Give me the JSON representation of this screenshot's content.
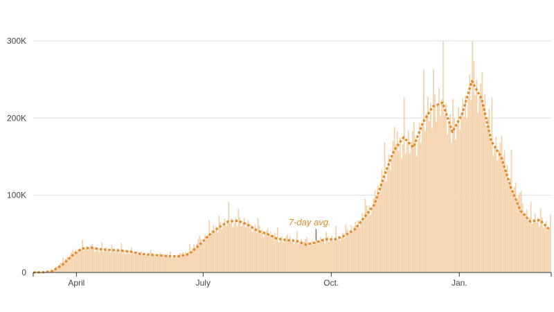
{
  "chart_data": {
    "type": "bar",
    "title": "",
    "xlabel": "",
    "ylabel": "",
    "x_start": "2020-03-01",
    "x_end": "2021-03-08",
    "ylim": [
      0,
      300000
    ],
    "y_ticks": [
      {
        "value": 0,
        "label": "0"
      },
      {
        "value": 100000,
        "label": "100K"
      },
      {
        "value": 200000,
        "label": "200K"
      },
      {
        "value": 300000,
        "label": "300K"
      }
    ],
    "x_ticks": [
      {
        "date": "2020-04-01",
        "label": "April"
      },
      {
        "date": "2020-07-01",
        "label": "July"
      },
      {
        "date": "2020-10-01",
        "label": "Oct."
      },
      {
        "date": "2021-01-01",
        "label": "Jan."
      }
    ],
    "grid": true,
    "colors": {
      "bars": "#f5d0a8",
      "average": "#e08b2c",
      "grid": "#dddddd",
      "baseline": "#333333",
      "annotation": "#e08b2c"
    },
    "annotation": {
      "text": "7-day avg.",
      "date": "2020-09-20"
    },
    "series": [
      {
        "kind": "daily-bars",
        "points": [
          [
            "2020-03-01",
            0
          ],
          [
            "2020-03-08",
            400
          ],
          [
            "2020-03-15",
            3000
          ],
          [
            "2020-03-22",
            15000
          ],
          [
            "2020-03-29",
            25000
          ],
          [
            "2020-04-05",
            32000
          ],
          [
            "2020-04-12",
            31000
          ],
          [
            "2020-04-19",
            29000
          ],
          [
            "2020-04-26",
            29000
          ],
          [
            "2020-05-03",
            28000
          ],
          [
            "2020-05-10",
            26000
          ],
          [
            "2020-05-17",
            24000
          ],
          [
            "2020-05-24",
            23000
          ],
          [
            "2020-05-31",
            22000
          ],
          [
            "2020-06-07",
            21000
          ],
          [
            "2020-06-14",
            21500
          ],
          [
            "2020-06-21",
            28000
          ],
          [
            "2020-06-28",
            40000
          ],
          [
            "2020-07-05",
            50000
          ],
          [
            "2020-07-12",
            60000
          ],
          [
            "2020-07-19",
            67000
          ],
          [
            "2020-07-26",
            66000
          ],
          [
            "2020-08-02",
            60000
          ],
          [
            "2020-08-09",
            55000
          ],
          [
            "2020-08-16",
            50000
          ],
          [
            "2020-08-23",
            45000
          ],
          [
            "2020-08-30",
            42000
          ],
          [
            "2020-09-06",
            41000
          ],
          [
            "2020-09-13",
            38000
          ],
          [
            "2020-09-20",
            40000
          ],
          [
            "2020-09-27",
            43000
          ],
          [
            "2020-10-04",
            44000
          ],
          [
            "2020-10-11",
            50000
          ],
          [
            "2020-10-18",
            58000
          ],
          [
            "2020-10-25",
            75000
          ],
          [
            "2020-11-01",
            92000
          ],
          [
            "2020-11-08",
            130000
          ],
          [
            "2020-11-15",
            160000
          ],
          [
            "2020-11-22",
            172000
          ],
          [
            "2020-11-29",
            162000
          ],
          [
            "2020-12-06",
            195000
          ],
          [
            "2020-12-13",
            215000
          ],
          [
            "2020-12-20",
            220000
          ],
          [
            "2020-12-27",
            180000
          ],
          [
            "2021-01-03",
            200000
          ],
          [
            "2021-01-10",
            248000
          ],
          [
            "2021-01-17",
            225000
          ],
          [
            "2021-01-24",
            175000
          ],
          [
            "2021-01-31",
            150000
          ],
          [
            "2021-02-07",
            120000
          ],
          [
            "2021-02-14",
            88000
          ],
          [
            "2021-02-21",
            68000
          ],
          [
            "2021-02-28",
            68000
          ],
          [
            "2021-03-07",
            55000
          ]
        ]
      },
      {
        "name": "7-day avg.",
        "kind": "line",
        "points": [
          [
            "2020-03-01",
            0
          ],
          [
            "2020-03-08",
            300
          ],
          [
            "2020-03-15",
            2000
          ],
          [
            "2020-03-22",
            10000
          ],
          [
            "2020-03-29",
            22000
          ],
          [
            "2020-04-05",
            31000
          ],
          [
            "2020-04-12",
            32000
          ],
          [
            "2020-04-19",
            30000
          ],
          [
            "2020-04-26",
            29000
          ],
          [
            "2020-05-03",
            28500
          ],
          [
            "2020-05-10",
            27000
          ],
          [
            "2020-05-17",
            24000
          ],
          [
            "2020-05-24",
            23000
          ],
          [
            "2020-05-31",
            22000
          ],
          [
            "2020-06-07",
            21000
          ],
          [
            "2020-06-14",
            21000
          ],
          [
            "2020-06-21",
            24000
          ],
          [
            "2020-06-28",
            35000
          ],
          [
            "2020-07-05",
            48000
          ],
          [
            "2020-07-12",
            58000
          ],
          [
            "2020-07-19",
            66000
          ],
          [
            "2020-07-26",
            67000
          ],
          [
            "2020-08-02",
            62000
          ],
          [
            "2020-08-09",
            54000
          ],
          [
            "2020-08-16",
            50000
          ],
          [
            "2020-08-23",
            44000
          ],
          [
            "2020-08-30",
            42000
          ],
          [
            "2020-09-06",
            41000
          ],
          [
            "2020-09-13",
            36000
          ],
          [
            "2020-09-20",
            39000
          ],
          [
            "2020-09-27",
            43000
          ],
          [
            "2020-10-04",
            43000
          ],
          [
            "2020-10-11",
            48000
          ],
          [
            "2020-10-18",
            56000
          ],
          [
            "2020-10-25",
            72000
          ],
          [
            "2020-11-01",
            88000
          ],
          [
            "2020-11-08",
            125000
          ],
          [
            "2020-11-15",
            158000
          ],
          [
            "2020-11-22",
            175000
          ],
          [
            "2020-11-29",
            162000
          ],
          [
            "2020-12-06",
            195000
          ],
          [
            "2020-12-13",
            215000
          ],
          [
            "2020-12-20",
            220000
          ],
          [
            "2020-12-27",
            182000
          ],
          [
            "2021-01-03",
            205000
          ],
          [
            "2021-01-10",
            248000
          ],
          [
            "2021-01-17",
            225000
          ],
          [
            "2021-01-24",
            170000
          ],
          [
            "2021-01-31",
            150000
          ],
          [
            "2021-02-07",
            110000
          ],
          [
            "2021-02-14",
            80000
          ],
          [
            "2021-02-21",
            66000
          ],
          [
            "2021-02-28",
            68000
          ],
          [
            "2021-03-07",
            55000
          ]
        ]
      }
    ]
  }
}
